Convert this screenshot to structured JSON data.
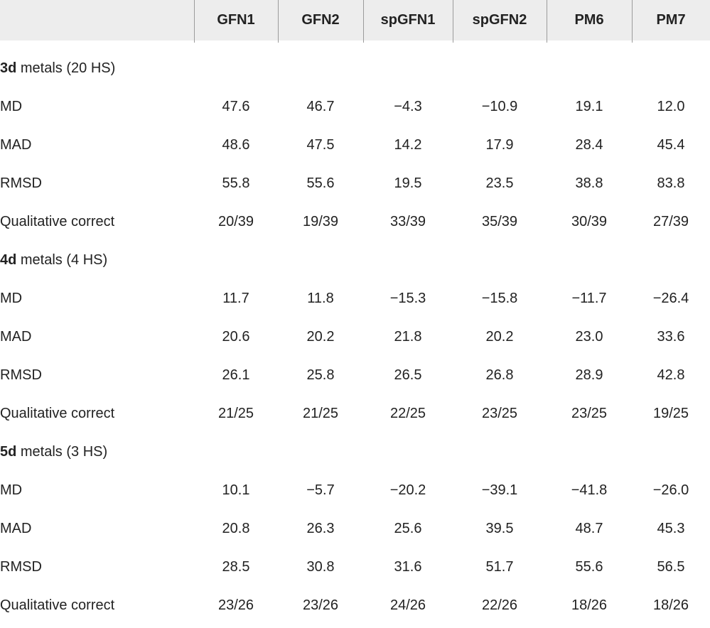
{
  "colors": {
    "header_bg": "#ededed",
    "divider": "#9b9b9b",
    "text": "#222222",
    "page_bg": "#ffffff"
  },
  "table": {
    "columns": [
      "",
      "GFN1",
      "GFN2",
      "spGFN1",
      "spGFN2",
      "PM6",
      "PM7"
    ],
    "sections": [
      {
        "title_bold": "3d",
        "title_rest": " metals (20 HS)",
        "rows": [
          {
            "label": "MD",
            "values": [
              "47.6",
              "46.7",
              "−4.3",
              "−10.9",
              "19.1",
              "12.0"
            ]
          },
          {
            "label": "MAD",
            "values": [
              "48.6",
              "47.5",
              "14.2",
              "17.9",
              "28.4",
              "45.4"
            ]
          },
          {
            "label": "RMSD",
            "values": [
              "55.8",
              "55.6",
              "19.5",
              "23.5",
              "38.8",
              "83.8"
            ]
          },
          {
            "label": "Qualitative correct",
            "values": [
              "20/39",
              "19/39",
              "33/39",
              "35/39",
              "30/39",
              "27/39"
            ]
          }
        ]
      },
      {
        "title_bold": "4d",
        "title_rest": " metals (4 HS)",
        "rows": [
          {
            "label": "MD",
            "values": [
              "11.7",
              "11.8",
              "−15.3",
              "−15.8",
              "−11.7",
              "−26.4"
            ]
          },
          {
            "label": "MAD",
            "values": [
              "20.6",
              "20.2",
              "21.8",
              "20.2",
              "23.0",
              "33.6"
            ]
          },
          {
            "label": "RMSD",
            "values": [
              "26.1",
              "25.8",
              "26.5",
              "26.8",
              "28.9",
              "42.8"
            ]
          },
          {
            "label": "Qualitative correct",
            "values": [
              "21/25",
              "21/25",
              "22/25",
              "23/25",
              "23/25",
              "19/25"
            ]
          }
        ]
      },
      {
        "title_bold": "5d",
        "title_rest": " metals (3 HS)",
        "rows": [
          {
            "label": "MD",
            "values": [
              "10.1",
              "−5.7",
              "−20.2",
              "−39.1",
              "−41.8",
              "−26.0"
            ]
          },
          {
            "label": "MAD",
            "values": [
              "20.8",
              "26.3",
              "25.6",
              "39.5",
              "48.7",
              "45.3"
            ]
          },
          {
            "label": "RMSD",
            "values": [
              "28.5",
              "30.8",
              "31.6",
              "51.7",
              "55.6",
              "56.5"
            ]
          },
          {
            "label": "Qualitative correct",
            "values": [
              "23/26",
              "23/26",
              "24/26",
              "22/26",
              "18/26",
              "18/26"
            ]
          }
        ]
      }
    ]
  }
}
